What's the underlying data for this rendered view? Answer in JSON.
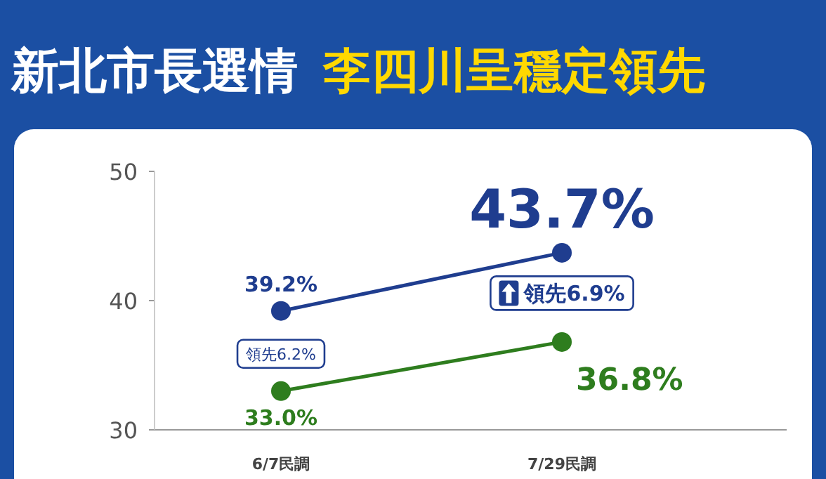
{
  "chart_data": {
    "type": "line",
    "title": "新北市長選情",
    "subtitle": "李四川呈穩定領先",
    "categories": [
      "6/7民調",
      "7/29民調"
    ],
    "series": [
      {
        "color": "#1f3d8f",
        "values": [
          39.2,
          43.7
        ],
        "value_labels": [
          "39.2%",
          "43.7%"
        ]
      },
      {
        "color": "#2e7d1e",
        "values": [
          33.0,
          36.8
        ],
        "value_labels": [
          "33.0%",
          "36.8%"
        ]
      }
    ],
    "ylim": [
      30,
      50
    ],
    "yticks": [
      30,
      40,
      50
    ],
    "grid": false,
    "marker": "circle",
    "annotations": [
      "領先6.2%",
      "領先6.9%"
    ]
  }
}
